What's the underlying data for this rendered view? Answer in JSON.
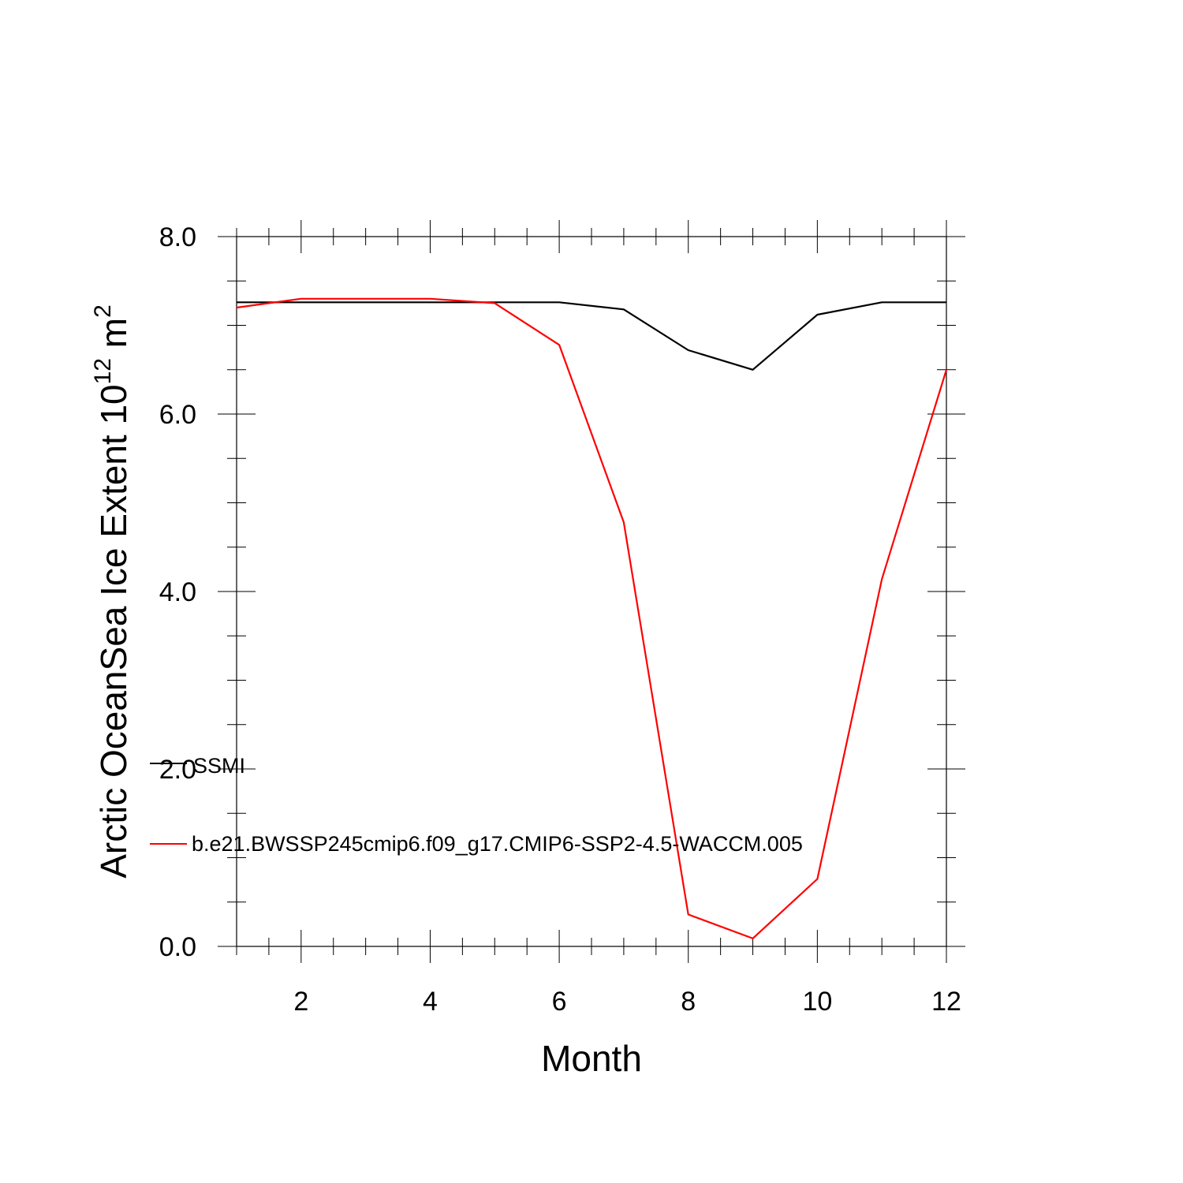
{
  "chart_data": {
    "type": "line",
    "xlabel": "Month",
    "ylabel_main": "Arctic OceanSea Ice Extent 10",
    "ylabel_exp": "12",
    "ylabel_unit": " m",
    "ylabel_unit_exp": "2",
    "xlim": [
      1,
      12
    ],
    "ylim": [
      0,
      8
    ],
    "x_ticks": [
      2,
      4,
      6,
      8,
      10,
      12
    ],
    "x_tick_labels": [
      "2",
      "4",
      "6",
      "8",
      "10",
      "12"
    ],
    "y_ticks": [
      0,
      2,
      4,
      6,
      8
    ],
    "y_tick_labels": [
      "0.0",
      "2.0",
      "4.0",
      "6.0",
      "8.0"
    ],
    "x": [
      1,
      2,
      3,
      4,
      5,
      6,
      7,
      8,
      9,
      10,
      11,
      12
    ],
    "series": [
      {
        "name": "SSMI",
        "color": "#000000",
        "values": [
          7.26,
          7.26,
          7.26,
          7.26,
          7.26,
          7.26,
          7.18,
          6.72,
          6.5,
          7.12,
          7.26,
          7.26
        ]
      },
      {
        "name": "b.e21.BWSSP245cmip6.f09_g17.CMIP6-SSP2-4.5-WACCM.005",
        "color": "#ff0000",
        "values": [
          7.2,
          7.3,
          7.3,
          7.3,
          7.25,
          6.78,
          4.78,
          0.36,
          0.09,
          0.76,
          4.14,
          6.5
        ]
      }
    ],
    "legend_position": "lower-left inside plot",
    "grid": false
  }
}
